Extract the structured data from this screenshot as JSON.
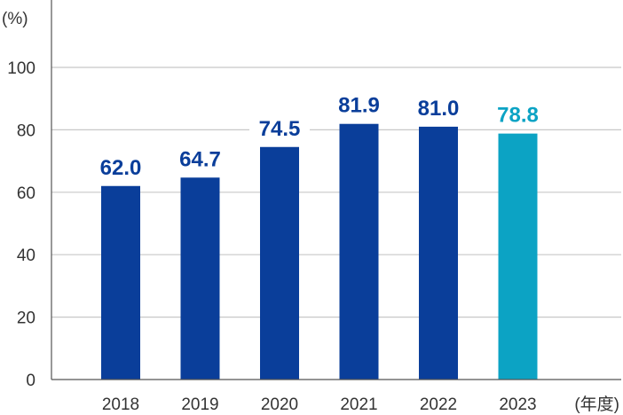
{
  "chart_data": {
    "type": "bar",
    "y_unit": "(%)",
    "x_unit": "(年度)",
    "categories": [
      "2018",
      "2019",
      "2020",
      "2021",
      "2022",
      "2023"
    ],
    "values": [
      62.0,
      64.7,
      74.5,
      81.9,
      81.0,
      78.8
    ],
    "value_labels": [
      "62.0",
      "64.7",
      "74.5",
      "81.9",
      "81.0",
      "78.8"
    ],
    "highlight_index": 5,
    "ylim": [
      0,
      100
    ],
    "yticks": [
      "0",
      "20",
      "40",
      "60",
      "80",
      "100"
    ],
    "grid": true,
    "colors": {
      "bar": "#0a3e9a",
      "highlight": "#0ca3c4"
    }
  }
}
